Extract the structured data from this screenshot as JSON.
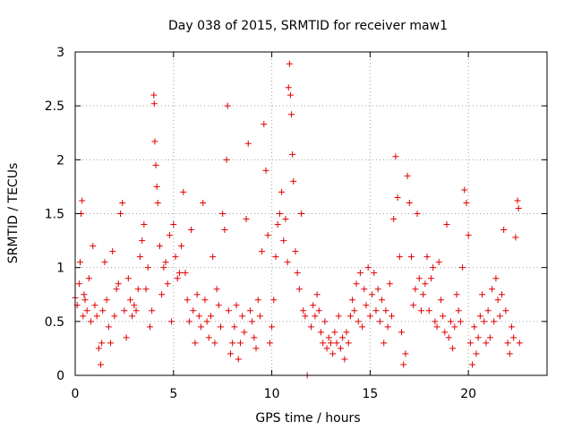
{
  "chart_data": {
    "type": "scatter",
    "title": "Day 038 of 2015, SRMTID for receiver maw1",
    "xlabel": "GPS time / hours",
    "ylabel": "SRMTID / TECUs",
    "xlim": [
      0,
      24
    ],
    "ylim": [
      0,
      3
    ],
    "xticks": [
      "0",
      "5",
      "10",
      "15",
      "20"
    ],
    "xtick_values": [
      0,
      5,
      10,
      15,
      20
    ],
    "yticks": [
      "0",
      "0.5",
      "1",
      "1.5",
      "2",
      "2.5",
      "3"
    ],
    "ytick_values": [
      0,
      0.5,
      1,
      1.5,
      2,
      2.5,
      3
    ],
    "grid": true,
    "marker": "+",
    "color": "#e00000",
    "series": [
      {
        "name": "maw1",
        "points": [
          [
            0.0,
            0.72
          ],
          [
            0.1,
            0.65
          ],
          [
            0.2,
            0.85
          ],
          [
            0.25,
            1.05
          ],
          [
            0.3,
            1.5
          ],
          [
            0.35,
            1.62
          ],
          [
            0.4,
            0.55
          ],
          [
            0.45,
            0.75
          ],
          [
            0.5,
            0.7
          ],
          [
            0.6,
            0.6
          ],
          [
            0.7,
            0.9
          ],
          [
            0.8,
            0.5
          ],
          [
            0.9,
            1.2
          ],
          [
            1.0,
            0.65
          ],
          [
            1.1,
            0.55
          ],
          [
            1.2,
            0.25
          ],
          [
            1.3,
            0.1
          ],
          [
            1.35,
            0.3
          ],
          [
            1.4,
            0.6
          ],
          [
            1.5,
            1.05
          ],
          [
            1.6,
            0.7
          ],
          [
            1.7,
            0.45
          ],
          [
            1.8,
            0.3
          ],
          [
            1.9,
            1.15
          ],
          [
            2.0,
            0.55
          ],
          [
            2.1,
            0.8
          ],
          [
            2.2,
            0.85
          ],
          [
            2.3,
            1.5
          ],
          [
            2.4,
            1.6
          ],
          [
            2.5,
            0.6
          ],
          [
            2.6,
            0.35
          ],
          [
            2.7,
            0.9
          ],
          [
            2.8,
            0.7
          ],
          [
            2.9,
            0.55
          ],
          [
            3.0,
            0.65
          ],
          [
            3.1,
            0.6
          ],
          [
            3.2,
            0.8
          ],
          [
            3.3,
            1.1
          ],
          [
            3.4,
            1.25
          ],
          [
            3.5,
            1.4
          ],
          [
            3.6,
            0.8
          ],
          [
            3.7,
            1.0
          ],
          [
            3.8,
            0.45
          ],
          [
            3.9,
            0.6
          ],
          [
            4.0,
            2.6
          ],
          [
            4.02,
            2.52
          ],
          [
            4.05,
            2.17
          ],
          [
            4.1,
            1.95
          ],
          [
            4.15,
            1.75
          ],
          [
            4.2,
            1.6
          ],
          [
            4.3,
            1.2
          ],
          [
            4.4,
            0.75
          ],
          [
            4.5,
            1.0
          ],
          [
            4.6,
            1.05
          ],
          [
            4.7,
            0.85
          ],
          [
            4.8,
            1.3
          ],
          [
            4.9,
            0.5
          ],
          [
            5.0,
            1.4
          ],
          [
            5.1,
            1.1
          ],
          [
            5.2,
            0.9
          ],
          [
            5.3,
            0.95
          ],
          [
            5.4,
            1.2
          ],
          [
            5.5,
            1.7
          ],
          [
            5.6,
            0.95
          ],
          [
            5.7,
            0.7
          ],
          [
            5.8,
            0.5
          ],
          [
            5.9,
            1.35
          ],
          [
            6.0,
            0.6
          ],
          [
            6.1,
            0.3
          ],
          [
            6.2,
            0.75
          ],
          [
            6.3,
            0.55
          ],
          [
            6.4,
            0.45
          ],
          [
            6.5,
            1.6
          ],
          [
            6.6,
            0.7
          ],
          [
            6.7,
            0.5
          ],
          [
            6.8,
            0.35
          ],
          [
            6.9,
            0.55
          ],
          [
            7.0,
            1.1
          ],
          [
            7.1,
            0.3
          ],
          [
            7.2,
            0.8
          ],
          [
            7.3,
            0.65
          ],
          [
            7.4,
            0.45
          ],
          [
            7.5,
            1.5
          ],
          [
            7.6,
            1.35
          ],
          [
            7.7,
            2.0
          ],
          [
            7.75,
            2.5
          ],
          [
            7.8,
            0.6
          ],
          [
            7.9,
            0.2
          ],
          [
            8.0,
            0.3
          ],
          [
            8.1,
            0.45
          ],
          [
            8.2,
            0.65
          ],
          [
            8.3,
            0.15
          ],
          [
            8.4,
            0.3
          ],
          [
            8.5,
            0.55
          ],
          [
            8.6,
            0.4
          ],
          [
            8.7,
            1.45
          ],
          [
            8.8,
            2.15
          ],
          [
            8.9,
            0.6
          ],
          [
            9.0,
            0.5
          ],
          [
            9.1,
            0.35
          ],
          [
            9.2,
            0.25
          ],
          [
            9.3,
            0.7
          ],
          [
            9.4,
            0.55
          ],
          [
            9.5,
            1.15
          ],
          [
            9.6,
            2.33
          ],
          [
            9.7,
            1.9
          ],
          [
            9.8,
            1.3
          ],
          [
            9.9,
            0.3
          ],
          [
            10.0,
            0.45
          ],
          [
            10.1,
            0.7
          ],
          [
            10.2,
            1.1
          ],
          [
            10.3,
            1.4
          ],
          [
            10.4,
            1.5
          ],
          [
            10.5,
            1.7
          ],
          [
            10.6,
            1.25
          ],
          [
            10.7,
            1.45
          ],
          [
            10.8,
            1.05
          ],
          [
            10.85,
            2.67
          ],
          [
            10.9,
            2.89
          ],
          [
            10.95,
            2.6
          ],
          [
            11.0,
            2.42
          ],
          [
            11.05,
            2.05
          ],
          [
            11.1,
            1.8
          ],
          [
            11.2,
            1.15
          ],
          [
            11.3,
            0.95
          ],
          [
            11.4,
            0.8
          ],
          [
            11.5,
            1.5
          ],
          [
            11.6,
            0.6
          ],
          [
            11.7,
            0.55
          ],
          [
            11.8,
            0.0
          ],
          [
            12.0,
            0.45
          ],
          [
            12.1,
            0.65
          ],
          [
            12.2,
            0.55
          ],
          [
            12.3,
            0.75
          ],
          [
            12.4,
            0.6
          ],
          [
            12.5,
            0.4
          ],
          [
            12.6,
            0.3
          ],
          [
            12.7,
            0.5
          ],
          [
            12.8,
            0.25
          ],
          [
            12.9,
            0.35
          ],
          [
            13.0,
            0.3
          ],
          [
            13.1,
            0.2
          ],
          [
            13.2,
            0.4
          ],
          [
            13.3,
            0.3
          ],
          [
            13.4,
            0.55
          ],
          [
            13.5,
            0.25
          ],
          [
            13.6,
            0.35
          ],
          [
            13.7,
            0.15
          ],
          [
            13.8,
            0.4
          ],
          [
            13.9,
            0.3
          ],
          [
            14.0,
            0.55
          ],
          [
            14.1,
            0.7
          ],
          [
            14.2,
            0.6
          ],
          [
            14.3,
            0.85
          ],
          [
            14.4,
            0.5
          ],
          [
            14.5,
            0.95
          ],
          [
            14.6,
            0.45
          ],
          [
            14.7,
            0.8
          ],
          [
            14.8,
            0.65
          ],
          [
            14.9,
            1.0
          ],
          [
            15.0,
            0.55
          ],
          [
            15.1,
            0.75
          ],
          [
            15.2,
            0.95
          ],
          [
            15.3,
            0.6
          ],
          [
            15.4,
            0.8
          ],
          [
            15.5,
            0.5
          ],
          [
            15.6,
            0.7
          ],
          [
            15.7,
            0.3
          ],
          [
            15.8,
            0.6
          ],
          [
            15.9,
            0.45
          ],
          [
            16.0,
            0.85
          ],
          [
            16.1,
            0.55
          ],
          [
            16.2,
            1.45
          ],
          [
            16.3,
            2.03
          ],
          [
            16.4,
            1.65
          ],
          [
            16.5,
            1.1
          ],
          [
            16.6,
            0.4
          ],
          [
            16.7,
            0.1
          ],
          [
            16.8,
            0.2
          ],
          [
            16.9,
            1.85
          ],
          [
            17.0,
            1.6
          ],
          [
            17.1,
            1.1
          ],
          [
            17.2,
            0.65
          ],
          [
            17.3,
            0.8
          ],
          [
            17.4,
            1.5
          ],
          [
            17.5,
            0.9
          ],
          [
            17.6,
            0.6
          ],
          [
            17.7,
            0.75
          ],
          [
            17.8,
            0.85
          ],
          [
            17.9,
            1.1
          ],
          [
            18.0,
            0.6
          ],
          [
            18.1,
            0.9
          ],
          [
            18.2,
            1.0
          ],
          [
            18.3,
            0.5
          ],
          [
            18.4,
            0.45
          ],
          [
            18.5,
            1.05
          ],
          [
            18.6,
            0.7
          ],
          [
            18.7,
            0.55
          ],
          [
            18.8,
            0.4
          ],
          [
            18.9,
            1.4
          ],
          [
            19.0,
            0.35
          ],
          [
            19.1,
            0.5
          ],
          [
            19.2,
            0.25
          ],
          [
            19.3,
            0.45
          ],
          [
            19.4,
            0.75
          ],
          [
            19.5,
            0.6
          ],
          [
            19.6,
            0.5
          ],
          [
            19.7,
            1.0
          ],
          [
            19.8,
            1.72
          ],
          [
            19.9,
            1.6
          ],
          [
            20.0,
            1.3
          ],
          [
            20.1,
            0.3
          ],
          [
            20.2,
            0.1
          ],
          [
            20.3,
            0.45
          ],
          [
            20.4,
            0.2
          ],
          [
            20.5,
            0.35
          ],
          [
            20.6,
            0.55
          ],
          [
            20.7,
            0.75
          ],
          [
            20.8,
            0.5
          ],
          [
            20.9,
            0.3
          ],
          [
            21.0,
            0.6
          ],
          [
            21.1,
            0.35
          ],
          [
            21.2,
            0.8
          ],
          [
            21.3,
            0.5
          ],
          [
            21.4,
            0.9
          ],
          [
            21.5,
            0.7
          ],
          [
            21.6,
            0.55
          ],
          [
            21.7,
            0.75
          ],
          [
            21.8,
            1.35
          ],
          [
            21.9,
            0.6
          ],
          [
            22.0,
            0.3
          ],
          [
            22.1,
            0.2
          ],
          [
            22.2,
            0.45
          ],
          [
            22.3,
            0.35
          ],
          [
            22.4,
            1.28
          ],
          [
            22.5,
            1.62
          ],
          [
            22.55,
            1.55
          ],
          [
            22.6,
            0.3
          ]
        ]
      }
    ]
  }
}
